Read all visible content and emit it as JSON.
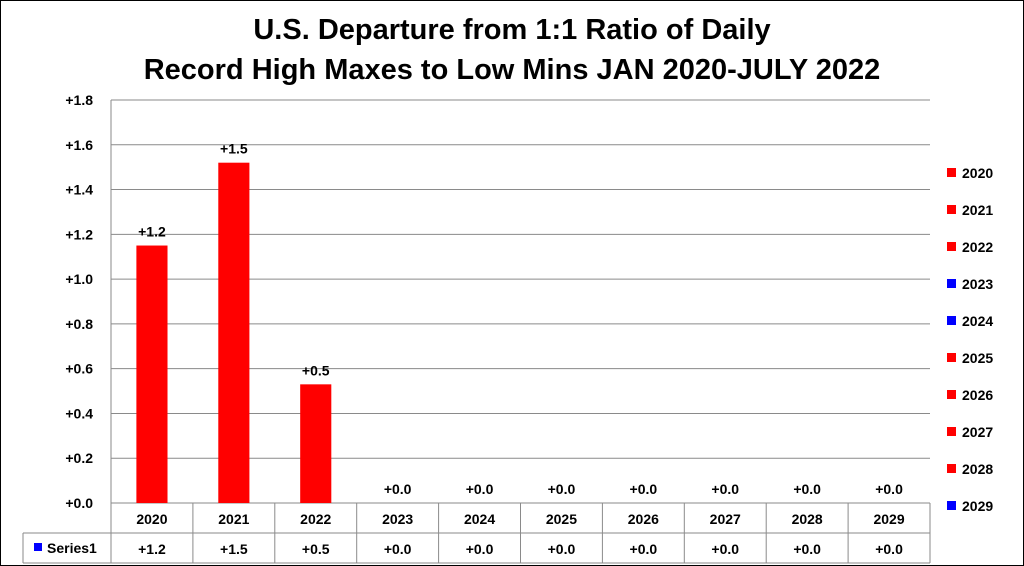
{
  "chart_data": {
    "type": "bar",
    "title_lines": [
      "U.S. Departure from 1:1 Ratio of Daily",
      "Record High Maxes to Low Mins JAN 2020-JULY 2022"
    ],
    "categories": [
      "2020",
      "2021",
      "2022",
      "2023",
      "2024",
      "2025",
      "2026",
      "2027",
      "2028",
      "2029"
    ],
    "values": [
      1.15,
      1.52,
      0.53,
      0,
      0,
      0,
      0,
      0,
      0,
      0
    ],
    "data_labels": [
      "+1.2",
      "+1.5",
      "+0.5",
      "+0.0",
      "+0.0",
      "+0.0",
      "+0.0",
      "+0.0",
      "+0.0",
      "+0.0"
    ],
    "point_colors": [
      "#ff0000",
      "#ff0000",
      "#ff0000",
      "#0000ff",
      "#0000ff",
      "#ff0000",
      "#ff0000",
      "#ff0000",
      "#ff0000",
      "#0000ff"
    ],
    "series": [
      {
        "name": "Series1",
        "color": "#0000ff"
      }
    ],
    "ylim": [
      0,
      1.8
    ],
    "yticks": [
      0,
      0.2,
      0.4,
      0.6,
      0.8,
      1.0,
      1.2,
      1.4,
      1.6,
      1.8
    ],
    "ytick_labels": [
      "+0.0",
      "+0.2",
      "+0.4",
      "+0.6",
      "+0.8",
      "+1.0",
      "+1.2",
      "+1.4",
      "+1.6",
      "+1.8"
    ],
    "grid": true,
    "legend_placement": "right",
    "data_table": true,
    "xlabel": "",
    "ylabel": ""
  }
}
